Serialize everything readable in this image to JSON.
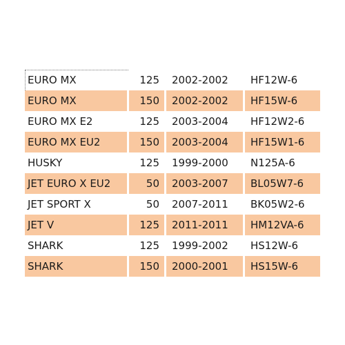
{
  "rows": [
    {
      "model": "EURO MX",
      "cc": "125",
      "years": "2002-2002",
      "code": "HF12W-6",
      "shaded": false
    },
    {
      "model": "EURO MX",
      "cc": "150",
      "years": "2002-2002",
      "code": "HF15W-6",
      "shaded": true
    },
    {
      "model": "EURO MX E2",
      "cc": "125",
      "years": "2003-2004",
      "code": "HF12W2-6",
      "shaded": false
    },
    {
      "model": "EURO MX EU2",
      "cc": "150",
      "years": "2003-2004",
      "code": "HF15W1-6",
      "shaded": true
    },
    {
      "model": "HUSKY",
      "cc": "125",
      "years": "1999-2000",
      "code": "N125A-6",
      "shaded": false
    },
    {
      "model": "JET EURO X EU2",
      "cc": "50",
      "years": "2003-2007",
      "code": "BL05W7-6",
      "shaded": true
    },
    {
      "model": "JET SPORT X",
      "cc": "50",
      "years": "2007-2011",
      "code": "BK05W2-6",
      "shaded": false
    },
    {
      "model": "JET V",
      "cc": "125",
      "years": "2011-2011",
      "code": "HM12VA-6",
      "shaded": true
    },
    {
      "model": "SHARK",
      "cc": "125",
      "years": "1999-2002",
      "code": "HS12W-6",
      "shaded": false
    },
    {
      "model": "SHARK",
      "cc": "150",
      "years": "2000-2001",
      "code": "HS15W-6",
      "shaded": true
    }
  ],
  "colors": {
    "row_shade": "#f9c8a0",
    "row_plain": "#ffffff",
    "text": "#1a1a1a"
  }
}
